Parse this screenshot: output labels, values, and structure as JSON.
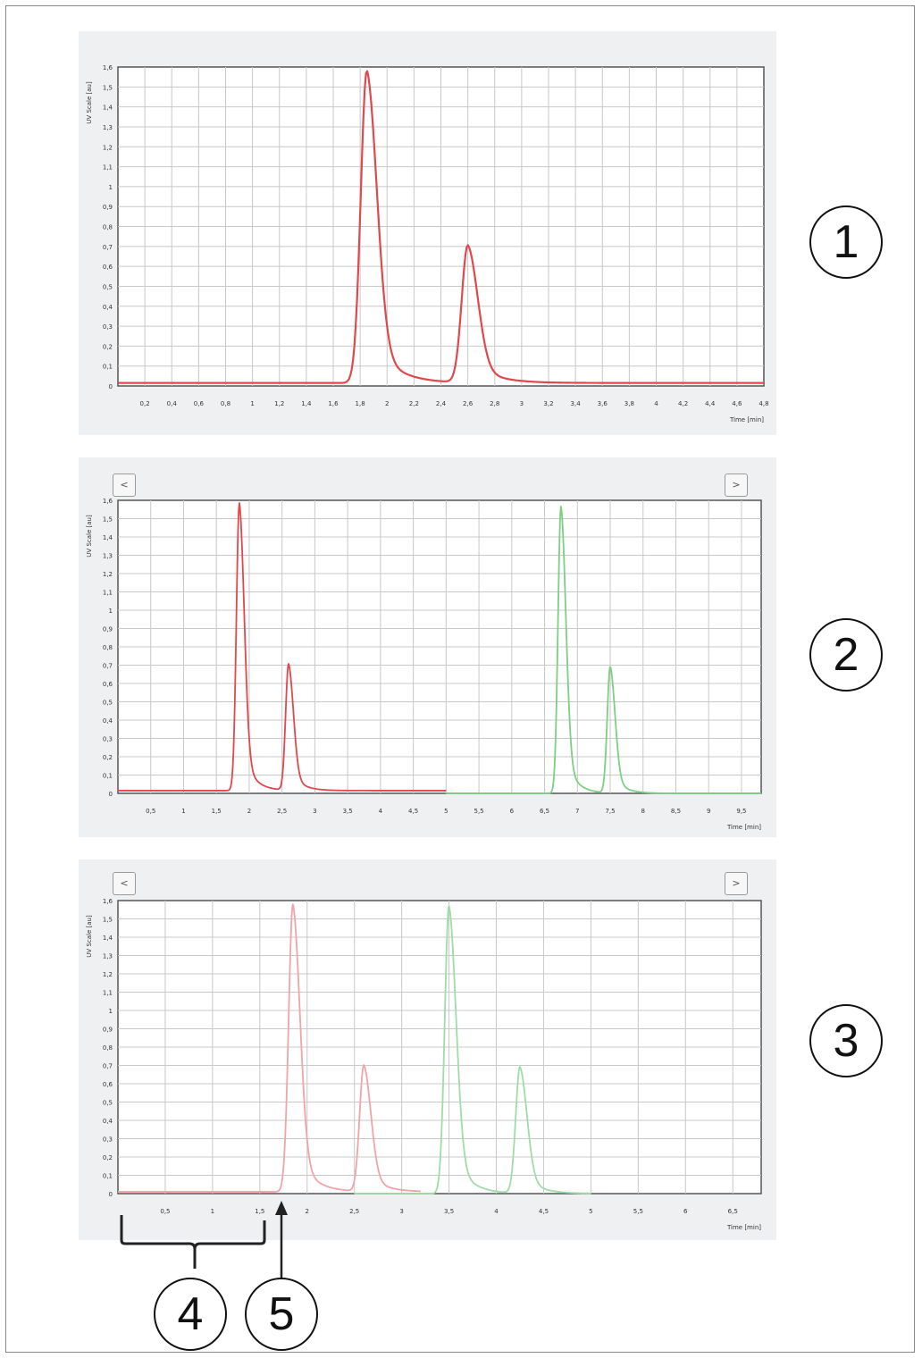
{
  "callouts": [
    "1",
    "2",
    "3",
    "4",
    "5"
  ],
  "nav": {
    "prev": "<",
    "next": ">"
  },
  "colors": {
    "red": "#e0484e",
    "red_light": "#f0a4a8",
    "green": "#7ccf84",
    "green_light": "#9fdca6",
    "grid": "#c8c8c8",
    "axis": "#444444"
  },
  "chart_data": [
    {
      "type": "line",
      "title": "",
      "xlabel": "Time [min]",
      "ylabel": "UV Scale [au]",
      "xlim": [
        0,
        4.8
      ],
      "ylim": [
        0,
        1.6
      ],
      "x_ticks": [
        "0,2",
        "0,4",
        "0,6",
        "0,8",
        "1",
        "1,2",
        "1,4",
        "1,6",
        "1,8",
        "2",
        "2,2",
        "2,4",
        "2,6",
        "2,8",
        "3",
        "3,2",
        "3,4",
        "3,6",
        "3,8",
        "4",
        "4,2",
        "4,4",
        "4,6",
        "4,8"
      ],
      "y_ticks": [
        "0",
        "0,1",
        "0,2",
        "0,3",
        "0,4",
        "0,5",
        "0,6",
        "0,7",
        "0,8",
        "0,9",
        "1",
        "1,1",
        "1,2",
        "1,3",
        "1,4",
        "1,5",
        "1,6"
      ],
      "grid": true,
      "series": [
        {
          "color": "#e0484e",
          "baseline": 0.015,
          "peaks": [
            {
              "t": 1.85,
              "h": 1.57
            },
            {
              "t": 2.6,
              "h": 0.69
            }
          ],
          "x_end": 4.8
        }
      ]
    },
    {
      "type": "line",
      "title": "",
      "xlabel": "Time [min]",
      "ylabel": "UV Scale [au]",
      "xlim": [
        0,
        9.8
      ],
      "ylim": [
        0,
        1.6
      ],
      "x_ticks": [
        "0,5",
        "1",
        "1,5",
        "2",
        "2,5",
        "3",
        "3,5",
        "4",
        "4,5",
        "5",
        "5,5",
        "6",
        "6,5",
        "7",
        "7,5",
        "8",
        "8,5",
        "9",
        "9,5"
      ],
      "y_ticks": [
        "0",
        "0,1",
        "0,2",
        "0,3",
        "0,4",
        "0,5",
        "0,6",
        "0,7",
        "0,8",
        "0,9",
        "1",
        "1,1",
        "1,2",
        "1,3",
        "1,4",
        "1,5",
        "1,6"
      ],
      "grid": true,
      "series": [
        {
          "color": "#e0484e",
          "baseline": 0.015,
          "peaks": [
            {
              "t": 1.85,
              "h": 1.57
            },
            {
              "t": 2.6,
              "h": 0.69
            }
          ],
          "x_end": 5.0
        },
        {
          "color": "#7ccf84",
          "baseline": 0.0,
          "peaks": [
            {
              "t": 6.75,
              "h": 1.57
            },
            {
              "t": 7.5,
              "h": 0.69
            }
          ],
          "x_start": 5.0,
          "x_end": 9.8
        }
      ]
    },
    {
      "type": "line",
      "title": "",
      "xlabel": "Time [min]",
      "ylabel": "UV Scale [au]",
      "xlim": [
        0,
        6.8
      ],
      "ylim": [
        0,
        1.6
      ],
      "x_ticks": [
        "0,5",
        "1",
        "1,5",
        "2",
        "2,5",
        "3",
        "3,5",
        "4",
        "4,5",
        "5",
        "5,5",
        "6",
        "6,5"
      ],
      "y_ticks": [
        "0",
        "0,1",
        "0,2",
        "0,3",
        "0,4",
        "0,5",
        "0,6",
        "0,7",
        "0,8",
        "0,9",
        "1",
        "1,1",
        "1,2",
        "1,3",
        "1,4",
        "1,5",
        "1,6"
      ],
      "grid": true,
      "series": [
        {
          "color": "#f0a4a8",
          "baseline": 0.01,
          "peaks": [
            {
              "t": 1.85,
              "h": 1.57
            },
            {
              "t": 2.6,
              "h": 0.69
            }
          ],
          "x_end": 3.2
        },
        {
          "color": "#9fdca6",
          "baseline": 0.0,
          "peaks": [
            {
              "t": 3.5,
              "h": 1.57
            },
            {
              "t": 4.25,
              "h": 0.69
            }
          ],
          "x_start": 2.5,
          "x_end": 5.0
        }
      ]
    }
  ]
}
